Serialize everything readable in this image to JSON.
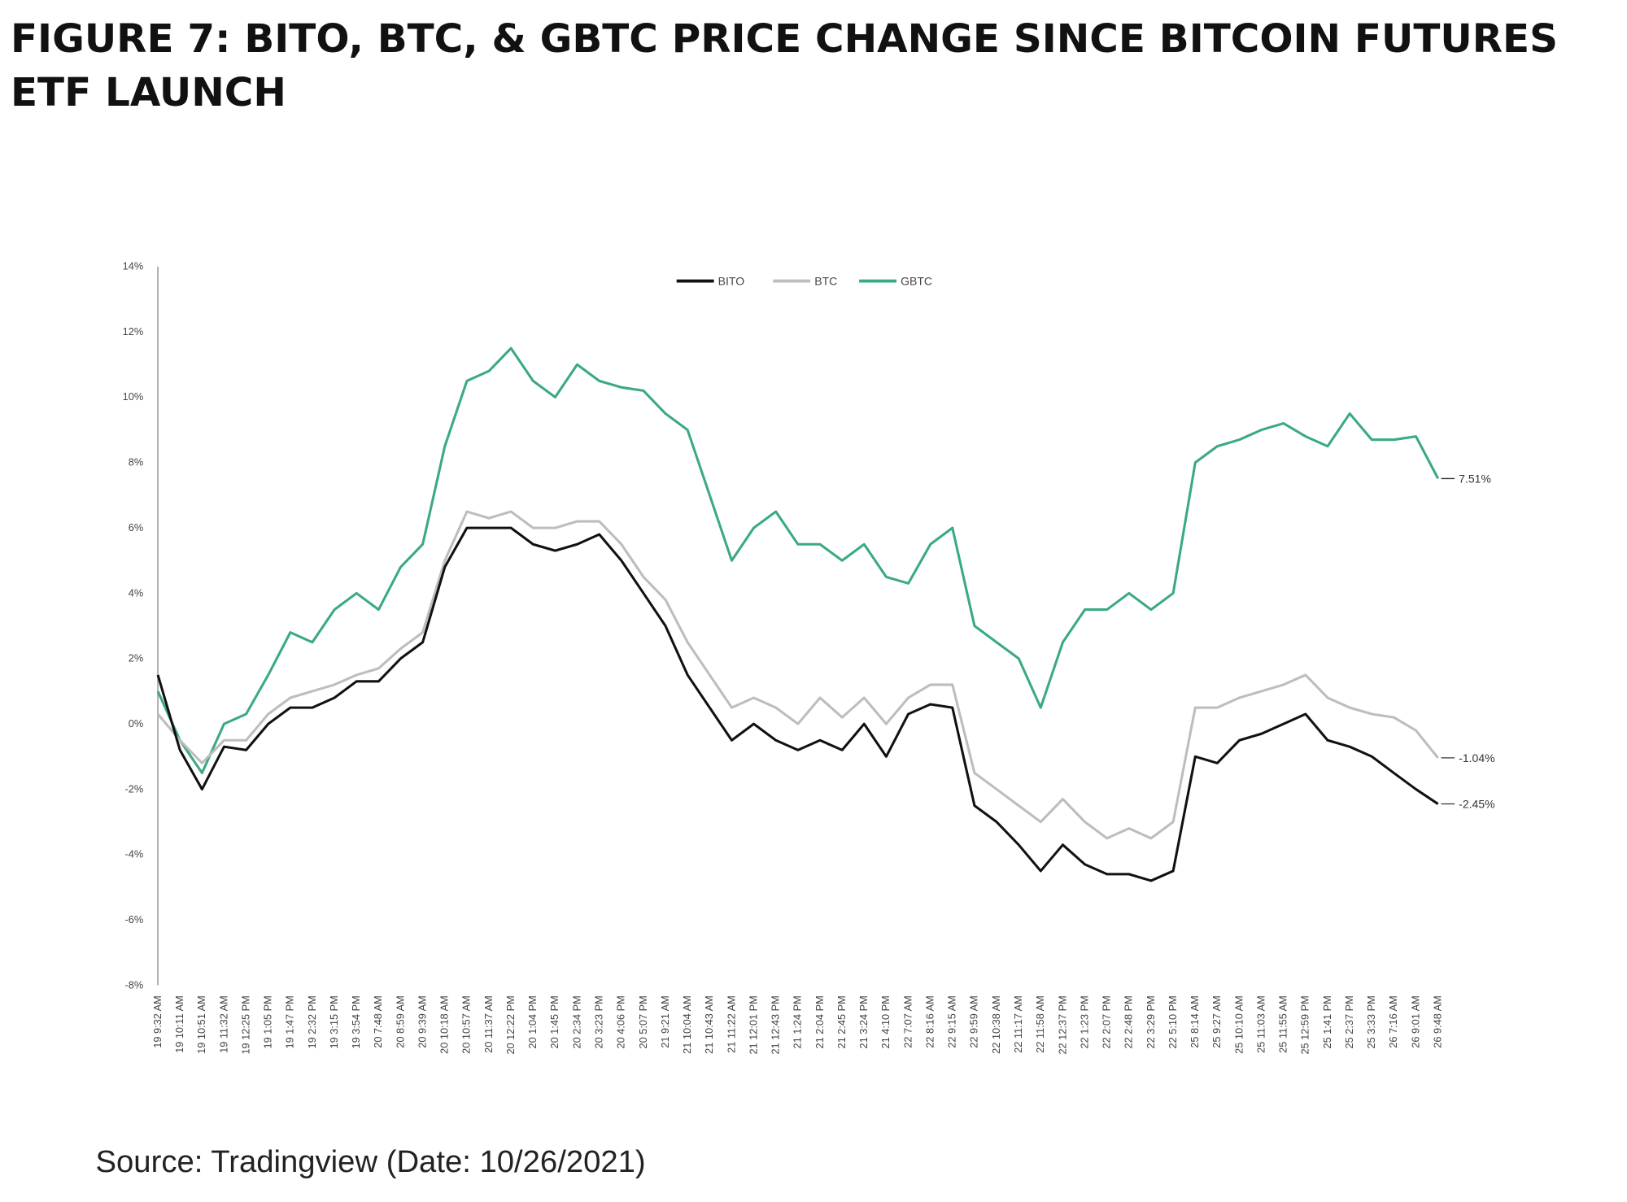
{
  "title_line1": "FIGURE 7: BITO, BTC, & GBTC PRICE CHANGE SINCE BITCOIN FUTURES",
  "title_line2": "ETF LAUNCH",
  "source": "Source: Tradingview (Date: 10/26/2021)",
  "chart_data": {
    "type": "line",
    "title": "FIGURE 7: BITO, BTC, & GBTC PRICE CHANGE SINCE BITCOIN FUTURES ETF LAUNCH",
    "xlabel": "",
    "ylabel": "",
    "ylim": [
      -8,
      14
    ],
    "yticks": [
      "14%",
      "12%",
      "10%",
      "8%",
      "6%",
      "4%",
      "2%",
      "0%",
      "-2%",
      "-4%",
      "-6%",
      "-8%"
    ],
    "ytick_values": [
      14,
      12,
      10,
      8,
      6,
      4,
      2,
      0,
      -2,
      -4,
      -6,
      -8
    ],
    "grid": false,
    "legend_position": "top-center",
    "categories": [
      "19 9:32 AM",
      "19 10:11 AM",
      "19 10:51 AM",
      "19 11:32 AM",
      "19 12:25 PM",
      "19 1:05 PM",
      "19 1:47 PM",
      "19 2:32 PM",
      "19 3:15 PM",
      "19 3:54 PM",
      "20 7:48 AM",
      "20 8:59 AM",
      "20 9:39 AM",
      "20 10:18 AM",
      "20 10:57 AM",
      "20 11:37 AM",
      "20 12:22 PM",
      "20 1:04 PM",
      "20 1:45 PM",
      "20 2:34 PM",
      "20 3:23 PM",
      "20 4:06 PM",
      "20 5:07 PM",
      "21 9:21 AM",
      "21 10:04 AM",
      "21 10:43 AM",
      "21 11:22 AM",
      "21 12:01 PM",
      "21 12:43 PM",
      "21 1:24 PM",
      "21 2:04 PM",
      "21 2:45 PM",
      "21 3:24 PM",
      "21 4:10 PM",
      "22 7:07 AM",
      "22 8:16 AM",
      "22 9:15 AM",
      "22 9:59 AM",
      "22 10:38 AM",
      "22 11:17 AM",
      "22 11:58 AM",
      "22 12:37 PM",
      "22 1:23 PM",
      "22 2:07 PM",
      "22 2:48 PM",
      "22 3:29 PM",
      "22 5:10 PM",
      "25 8:14 AM",
      "25 9:27 AM",
      "25 10:10 AM",
      "25 11:03 AM",
      "25 11:55 AM",
      "25 12:59 PM",
      "25 1:41 PM",
      "25 2:37 PM",
      "25 3:33 PM",
      "26 7:16 AM",
      "26 9:01 AM",
      "26 9:48 AM"
    ],
    "series": [
      {
        "name": "BITO",
        "color": "#111111",
        "end_label": "-2.45%",
        "values": [
          1.5,
          -0.8,
          -2.0,
          -0.7,
          -0.8,
          0,
          0.5,
          0.5,
          0.8,
          1.3,
          1.3,
          2.0,
          2.5,
          4.8,
          6.0,
          6.0,
          6.0,
          5.5,
          5.3,
          5.5,
          5.8,
          5.0,
          4.0,
          3.0,
          1.5,
          0.5,
          -0.5,
          0,
          -0.5,
          -0.8,
          -0.5,
          -0.8,
          0,
          -1.0,
          0.3,
          0.6,
          0.5,
          -2.5,
          -3.0,
          -3.7,
          -4.5,
          -3.7,
          -4.3,
          -4.6,
          -4.6,
          -4.8,
          -4.5,
          -1.0,
          -1.2,
          -0.5,
          -0.3,
          0,
          0.3,
          -0.5,
          -0.7,
          -1.0,
          -1.5,
          -2.0,
          -2.45
        ]
      },
      {
        "name": "BTC",
        "color": "#bdbdbd",
        "end_label": "-1.04%",
        "values": [
          0.3,
          -0.5,
          -1.2,
          -0.5,
          -0.5,
          0.3,
          0.8,
          1.0,
          1.2,
          1.5,
          1.7,
          2.3,
          2.8,
          5.0,
          6.5,
          6.3,
          6.5,
          6.0,
          6.0,
          6.2,
          6.2,
          5.5,
          4.5,
          3.8,
          2.5,
          1.5,
          0.5,
          0.8,
          0.5,
          0,
          0.8,
          0.2,
          0.8,
          0,
          0.8,
          1.2,
          1.2,
          -1.5,
          -2.0,
          -2.5,
          -3.0,
          -2.3,
          -3.0,
          -3.5,
          -3.2,
          -3.5,
          -3.0,
          0.5,
          0.5,
          0.8,
          1.0,
          1.2,
          1.5,
          0.8,
          0.5,
          0.3,
          0.2,
          -0.2,
          -1.04
        ]
      },
      {
        "name": "GBTC",
        "color": "#3aa985",
        "end_label": "7.51%",
        "values": [
          1.0,
          -0.5,
          -1.5,
          0,
          0.3,
          1.5,
          2.8,
          2.5,
          3.5,
          4.0,
          3.5,
          4.8,
          5.5,
          8.5,
          10.5,
          10.8,
          11.5,
          10.5,
          10.0,
          11.0,
          10.5,
          10.3,
          10.2,
          9.5,
          9.0,
          7.0,
          5.0,
          6.0,
          6.5,
          5.5,
          5.5,
          5.0,
          5.5,
          4.5,
          4.3,
          5.5,
          6.0,
          3.0,
          2.5,
          2.0,
          0.5,
          2.5,
          3.5,
          3.5,
          4.0,
          3.5,
          4.0,
          8.0,
          8.5,
          8.7,
          9.0,
          9.2,
          8.8,
          8.5,
          9.5,
          8.7,
          8.7,
          8.8,
          7.51
        ]
      }
    ]
  }
}
